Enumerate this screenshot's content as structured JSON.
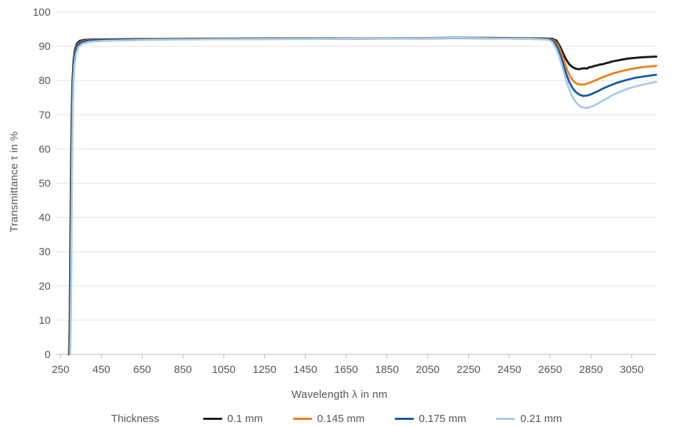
{
  "colors": {
    "background": "#ffffff",
    "grid": "#e3e3e3",
    "axis_line": "#b9b9b9",
    "tick": "#b9b9b9",
    "text": "#53565a"
  },
  "chart_data": {
    "type": "line",
    "title": "",
    "xlabel": "Wavelength λ in nm",
    "ylabel": "Transmittance τ in %",
    "legend_title": "Thickness",
    "legend_position": "bottom",
    "grid": "horizontal",
    "xlim": [
      250,
      3170
    ],
    "ylim": [
      0,
      100
    ],
    "x_ticks": [
      250,
      450,
      650,
      850,
      1050,
      1250,
      1450,
      1650,
      1850,
      2050,
      2250,
      2450,
      2650,
      2850,
      3050
    ],
    "y_ticks": [
      0,
      10,
      20,
      30,
      40,
      50,
      60,
      70,
      80,
      90,
      100
    ],
    "series": [
      {
        "name": "0.1 mm",
        "color": "#1a1a1a",
        "width": 3,
        "points": [
          [
            292,
            0
          ],
          [
            295,
            8
          ],
          [
            298,
            28
          ],
          [
            301,
            52
          ],
          [
            304,
            68
          ],
          [
            308,
            79
          ],
          [
            313,
            85
          ],
          [
            320,
            88.8
          ],
          [
            330,
            90.8
          ],
          [
            345,
            91.6
          ],
          [
            370,
            91.9
          ],
          [
            420,
            92.0
          ],
          [
            600,
            92.1
          ],
          [
            900,
            92.2
          ],
          [
            1300,
            92.3
          ],
          [
            1700,
            92.3
          ],
          [
            2000,
            92.4
          ],
          [
            2200,
            92.5
          ],
          [
            2350,
            92.45
          ],
          [
            2500,
            92.35
          ],
          [
            2600,
            92.3
          ],
          [
            2660,
            92.2
          ],
          [
            2680,
            91.7
          ],
          [
            2700,
            89.8
          ],
          [
            2715,
            87.8
          ],
          [
            2730,
            86.0
          ],
          [
            2745,
            84.7
          ],
          [
            2760,
            83.9
          ],
          [
            2775,
            83.5
          ],
          [
            2790,
            83.3
          ],
          [
            2805,
            83.5
          ],
          [
            2818,
            83.6
          ],
          [
            2830,
            83.5
          ],
          [
            2842,
            83.9
          ],
          [
            2855,
            84.0
          ],
          [
            2868,
            84.3
          ],
          [
            2880,
            84.4
          ],
          [
            2895,
            84.7
          ],
          [
            2910,
            84.8
          ],
          [
            2925,
            85.1
          ],
          [
            2940,
            85.3
          ],
          [
            2955,
            85.6
          ],
          [
            2975,
            85.8
          ],
          [
            3000,
            86.1
          ],
          [
            3030,
            86.4
          ],
          [
            3060,
            86.6
          ],
          [
            3100,
            86.8
          ],
          [
            3170,
            87.0
          ]
        ]
      },
      {
        "name": "0.145 mm",
        "color": "#ee7d11",
        "width": 2.8,
        "points": [
          [
            294,
            0
          ],
          [
            297,
            8
          ],
          [
            300,
            28
          ],
          [
            303,
            52
          ],
          [
            306,
            68
          ],
          [
            310,
            79
          ],
          [
            315,
            85
          ],
          [
            322,
            88.5
          ],
          [
            332,
            90.4
          ],
          [
            348,
            91.3
          ],
          [
            375,
            91.7
          ],
          [
            430,
            91.9
          ],
          [
            700,
            92.05
          ],
          [
            1100,
            92.2
          ],
          [
            1600,
            92.25
          ],
          [
            2000,
            92.3
          ],
          [
            2200,
            92.4
          ],
          [
            2400,
            92.3
          ],
          [
            2550,
            92.25
          ],
          [
            2650,
            92.1
          ],
          [
            2670,
            91.7
          ],
          [
            2690,
            90.2
          ],
          [
            2705,
            88.0
          ],
          [
            2720,
            85.4
          ],
          [
            2735,
            82.9
          ],
          [
            2750,
            81.0
          ],
          [
            2765,
            79.8
          ],
          [
            2780,
            79.1
          ],
          [
            2800,
            78.8
          ],
          [
            2820,
            78.9
          ],
          [
            2845,
            79.4
          ],
          [
            2870,
            80.0
          ],
          [
            2900,
            80.8
          ],
          [
            2935,
            81.6
          ],
          [
            2970,
            82.3
          ],
          [
            3010,
            82.9
          ],
          [
            3050,
            83.4
          ],
          [
            3100,
            83.9
          ],
          [
            3170,
            84.3
          ]
        ]
      },
      {
        "name": "0.175 mm",
        "color": "#1158a8",
        "width": 2.8,
        "points": [
          [
            295,
            0
          ],
          [
            298,
            8
          ],
          [
            301,
            28
          ],
          [
            304,
            52
          ],
          [
            307,
            68
          ],
          [
            311,
            79
          ],
          [
            316,
            85
          ],
          [
            323,
            88.3
          ],
          [
            334,
            90.2
          ],
          [
            350,
            91.1
          ],
          [
            380,
            91.6
          ],
          [
            440,
            91.8
          ],
          [
            700,
            92.0
          ],
          [
            1100,
            92.15
          ],
          [
            1600,
            92.2
          ],
          [
            2000,
            92.3
          ],
          [
            2200,
            92.4
          ],
          [
            2400,
            92.3
          ],
          [
            2550,
            92.2
          ],
          [
            2645,
            92.0
          ],
          [
            2665,
            91.6
          ],
          [
            2685,
            89.8
          ],
          [
            2700,
            87.4
          ],
          [
            2715,
            84.6
          ],
          [
            2730,
            81.8
          ],
          [
            2745,
            79.5
          ],
          [
            2760,
            77.8
          ],
          [
            2775,
            76.7
          ],
          [
            2790,
            76.0
          ],
          [
            2810,
            75.5
          ],
          [
            2830,
            75.6
          ],
          [
            2855,
            76.1
          ],
          [
            2880,
            76.8
          ],
          [
            2910,
            77.7
          ],
          [
            2945,
            78.6
          ],
          [
            2980,
            79.4
          ],
          [
            3020,
            80.1
          ],
          [
            3060,
            80.7
          ],
          [
            3110,
            81.2
          ],
          [
            3170,
            81.7
          ]
        ]
      },
      {
        "name": "0.21 mm",
        "color": "#a6cbe9",
        "width": 2.8,
        "points": [
          [
            297,
            0
          ],
          [
            300,
            8
          ],
          [
            303,
            28
          ],
          [
            306,
            52
          ],
          [
            309,
            68
          ],
          [
            313,
            79
          ],
          [
            318,
            84.5
          ],
          [
            326,
            87.8
          ],
          [
            337,
            89.7
          ],
          [
            355,
            90.7
          ],
          [
            390,
            91.3
          ],
          [
            460,
            91.6
          ],
          [
            700,
            91.9
          ],
          [
            1100,
            92.1
          ],
          [
            1600,
            92.2
          ],
          [
            2000,
            92.35
          ],
          [
            2200,
            92.45
          ],
          [
            2400,
            92.3
          ],
          [
            2550,
            92.2
          ],
          [
            2640,
            91.9
          ],
          [
            2660,
            91.3
          ],
          [
            2680,
            89.3
          ],
          [
            2695,
            86.9
          ],
          [
            2710,
            83.9
          ],
          [
            2725,
            80.8
          ],
          [
            2740,
            78.0
          ],
          [
            2755,
            75.8
          ],
          [
            2770,
            74.2
          ],
          [
            2785,
            73.1
          ],
          [
            2800,
            72.4
          ],
          [
            2820,
            72.0
          ],
          [
            2840,
            72.1
          ],
          [
            2865,
            72.7
          ],
          [
            2890,
            73.5
          ],
          [
            2920,
            74.5
          ],
          [
            2955,
            75.7
          ],
          [
            2990,
            76.7
          ],
          [
            3030,
            77.6
          ],
          [
            3070,
            78.3
          ],
          [
            3120,
            79.0
          ],
          [
            3170,
            79.6
          ]
        ]
      }
    ]
  }
}
